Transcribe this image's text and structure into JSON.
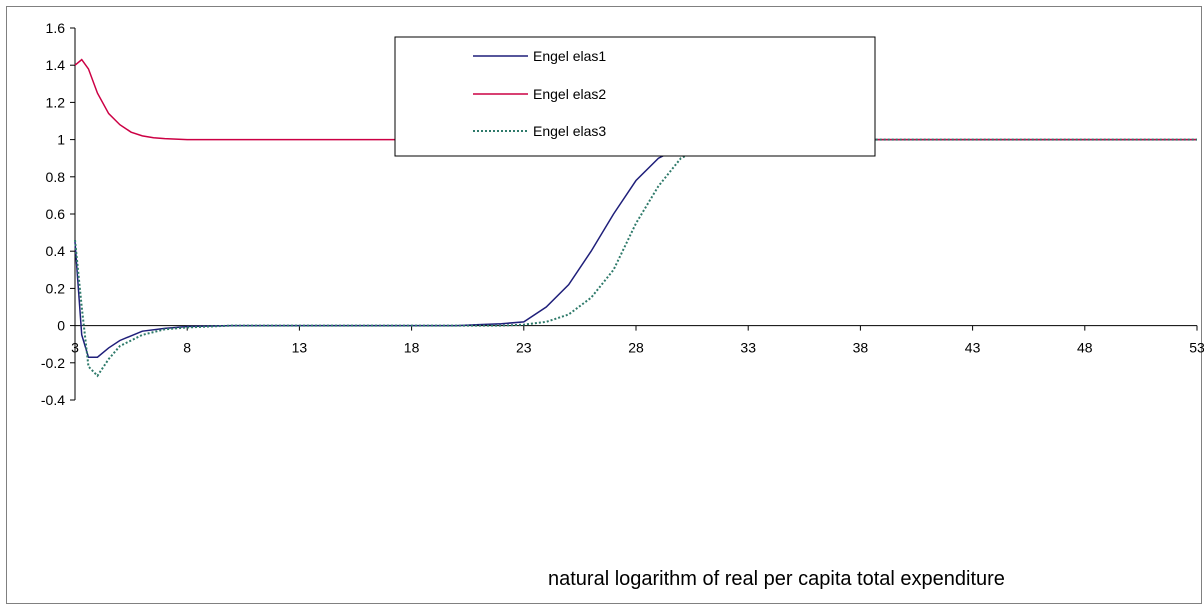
{
  "chart_data": {
    "type": "line",
    "title": "",
    "xlabel": "natural logarithm of real per capita total expenditure",
    "ylabel": "",
    "xlim": [
      3,
      53
    ],
    "ylim": [
      -0.4,
      1.6
    ],
    "x_ticks": [
      "3",
      "8",
      "13",
      "18",
      "23",
      "28",
      "33",
      "38",
      "43",
      "48",
      "53"
    ],
    "y_ticks": [
      "1.6",
      "1.4",
      "1.2",
      "1",
      "0.8",
      "0.6",
      "0.4",
      "0.2",
      "0",
      "-0.2",
      "-0.4"
    ],
    "grid": false,
    "legend": "top-center",
    "series": [
      {
        "name": "Engel elas1",
        "color": "#1f1f7a",
        "style": "solid",
        "points": [
          [
            3,
            0.45
          ],
          [
            3.3,
            -0.05
          ],
          [
            3.6,
            -0.17
          ],
          [
            4,
            -0.17
          ],
          [
            4.5,
            -0.12
          ],
          [
            5,
            -0.08
          ],
          [
            6,
            -0.03
          ],
          [
            7,
            -0.015
          ],
          [
            8,
            -0.005
          ],
          [
            10,
            0
          ],
          [
            15,
            0
          ],
          [
            20,
            0
          ],
          [
            21,
            0.005
          ],
          [
            22,
            0.01
          ],
          [
            23,
            0.02
          ],
          [
            24,
            0.1
          ],
          [
            25,
            0.22
          ],
          [
            26,
            0.4
          ],
          [
            27,
            0.6
          ],
          [
            28,
            0.78
          ],
          [
            29,
            0.9
          ],
          [
            30,
            0.96
          ],
          [
            31,
            0.99
          ],
          [
            32,
            1.0
          ],
          [
            35,
            1.0
          ],
          [
            40,
            1.0
          ],
          [
            45,
            1.0
          ],
          [
            50,
            1.0
          ],
          [
            53,
            1.0
          ]
        ]
      },
      {
        "name": "Engel elas2",
        "color": "#cc0044",
        "style": "solid",
        "points": [
          [
            3,
            1.4
          ],
          [
            3.3,
            1.43
          ],
          [
            3.6,
            1.38
          ],
          [
            4,
            1.25
          ],
          [
            4.5,
            1.14
          ],
          [
            5,
            1.08
          ],
          [
            5.5,
            1.04
          ],
          [
            6,
            1.02
          ],
          [
            6.5,
            1.01
          ],
          [
            7,
            1.005
          ],
          [
            8,
            1.0
          ],
          [
            10,
            1.0
          ],
          [
            20,
            1.0
          ],
          [
            30,
            1.0
          ],
          [
            40,
            1.0
          ],
          [
            53,
            1.0
          ]
        ]
      },
      {
        "name": "Engel elas3",
        "color": "#2e7a6a",
        "style": "dotted",
        "points": [
          [
            3,
            0.46
          ],
          [
            3.3,
            0.1
          ],
          [
            3.6,
            -0.22
          ],
          [
            4,
            -0.27
          ],
          [
            4.5,
            -0.18
          ],
          [
            5,
            -0.11
          ],
          [
            6,
            -0.05
          ],
          [
            7,
            -0.02
          ],
          [
            8,
            -0.01
          ],
          [
            10,
            0
          ],
          [
            15,
            0
          ],
          [
            20,
            0
          ],
          [
            22,
            0
          ],
          [
            23,
            0.005
          ],
          [
            24,
            0.02
          ],
          [
            25,
            0.06
          ],
          [
            26,
            0.15
          ],
          [
            27,
            0.3
          ],
          [
            28,
            0.55
          ],
          [
            29,
            0.75
          ],
          [
            30,
            0.9
          ],
          [
            31,
            0.96
          ],
          [
            32,
            0.99
          ],
          [
            33,
            1.0
          ],
          [
            40,
            1.0
          ],
          [
            53,
            1.0
          ]
        ]
      }
    ]
  }
}
